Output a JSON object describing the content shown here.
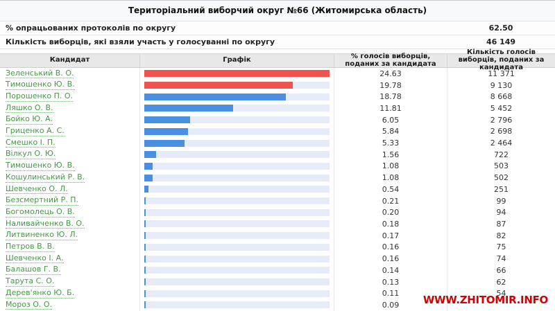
{
  "page": {
    "title": "Територіальний виборчий округ №66 (Житомирська область)"
  },
  "summary": {
    "rows": [
      {
        "label": "% опрацьованих протоколів по округу",
        "value": "62.50"
      },
      {
        "label": "Кількість виборців, які взяли участь у голосуванні по округу",
        "value": "46 149"
      }
    ]
  },
  "table": {
    "columns": [
      {
        "label": "Кандидат"
      },
      {
        "label": "Графік"
      },
      {
        "label": "% голосів виборців, поданих за кандидата"
      },
      {
        "label": "Кількість голосів виборців, поданих за кандидата"
      }
    ]
  },
  "watermark": "WWW.ZHITOMIR.INFO",
  "colors": {
    "bar_red": "#ef5350",
    "bar_blue": "#4a90e2",
    "bar_track": "#e5ebf7",
    "link_green": "#449944",
    "watermark_red": "#d10101"
  },
  "chart_data": {
    "type": "bar",
    "orientation": "horizontal",
    "title": "Територіальний виборчий округ №66 (Житомирська область)",
    "xlabel": "% голосів виборців, поданих за кандидата",
    "xlim": [
      0,
      24.63
    ],
    "grid": false,
    "legend": false,
    "categories": [
      "Зеленський В. О.",
      "Тимошенко Ю. В.",
      "Порошенко П. О.",
      "Ляшко О. В.",
      "Бойко Ю. А.",
      "Гриценко А. С.",
      "Смешко І. П.",
      "Вілкул О. Ю.",
      "Тимошенко Ю. В.",
      "Кошулинський Р. В.",
      "Шевченко О. Л.",
      "Безсмертний Р. П.",
      "Богомолець О. В.",
      "Наливайченко В. О.",
      "Литвиненко Ю. Л.",
      "Петров В. В.",
      "Шевченко І. А.",
      "Балашов Г. В.",
      "Тарута С. О.",
      "Дерев'янко Ю. Б.",
      "Мороз О. О."
    ],
    "series": [
      {
        "name": "% голосів виборців, поданих за кандидата",
        "values": [
          24.63,
          19.78,
          18.78,
          11.81,
          6.05,
          5.84,
          5.33,
          1.56,
          1.08,
          1.08,
          0.54,
          0.21,
          0.2,
          0.18,
          0.17,
          0.16,
          0.16,
          0.14,
          0.13,
          0.11,
          0.09
        ]
      },
      {
        "name": "Кількість голосів виборців, поданих за кандидата",
        "values": [
          "11 371",
          "9 130",
          "8 668",
          "5 452",
          "2 796",
          "2 698",
          "2 464",
          "722",
          "503",
          "502",
          "251",
          "99",
          "94",
          "87",
          "82",
          "75",
          "74",
          "66",
          "62",
          "54",
          ""
        ]
      }
    ],
    "bar_colors": [
      "#ef5350",
      "#ef5350",
      "#4a90e2",
      "#4a90e2",
      "#4a90e2",
      "#4a90e2",
      "#4a90e2",
      "#4a90e2",
      "#4a90e2",
      "#4a90e2",
      "#4a90e2",
      "#4a90e2",
      "#4a90e2",
      "#4a90e2",
      "#4a90e2",
      "#4a90e2",
      "#4a90e2",
      "#4a90e2",
      "#4a90e2",
      "#4a90e2",
      "#4a90e2"
    ]
  }
}
